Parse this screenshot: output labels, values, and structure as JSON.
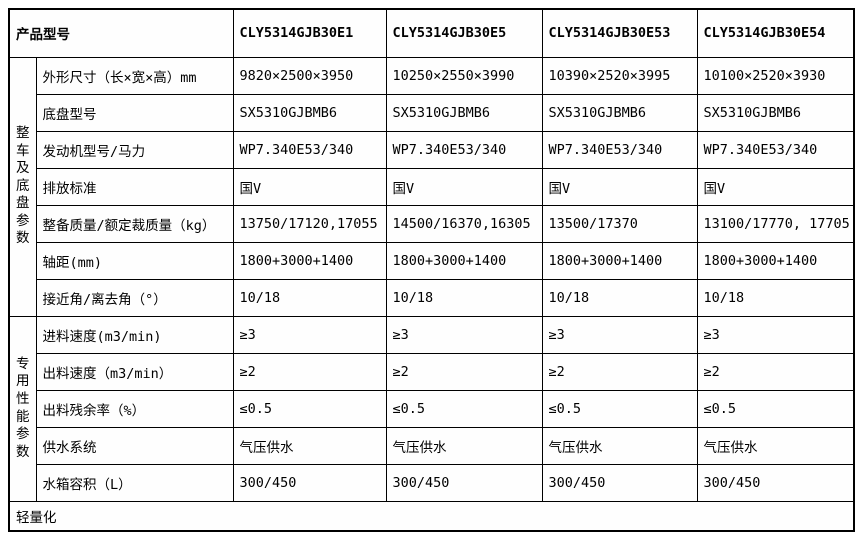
{
  "table": {
    "header": {
      "product_label": "产品型号",
      "models": [
        "CLY5314GJB30E1",
        "CLY5314GJB30E5",
        "CLY5314GJB30E53",
        "CLY5314GJB30E54"
      ]
    },
    "groups": [
      {
        "name": "整车及底盘参数",
        "rows": [
          {
            "label": "外形尺寸（长×宽×高）mm",
            "values": [
              "9820×2500×3950",
              "10250×2550×3990",
              "10390×2520×3995",
              "10100×2520×3930"
            ]
          },
          {
            "label": "底盘型号",
            "values": [
              "SX5310GJBMB6",
              "SX5310GJBMB6",
              "SX5310GJBMB6",
              "SX5310GJBMB6"
            ]
          },
          {
            "label": "发动机型号/马力",
            "values": [
              "WP7.340E53/340",
              "WP7.340E53/340",
              "WP7.340E53/340",
              "WP7.340E53/340"
            ]
          },
          {
            "label": "排放标准",
            "values": [
              "国V",
              "国V",
              "国V",
              "国V"
            ]
          },
          {
            "label": "整备质量/额定裁质量（kg）",
            "values": [
              "13750/17120,17055",
              "14500/16370,16305",
              "13500/17370",
              "13100/17770, 17705"
            ]
          },
          {
            "label": "轴距(mm)",
            "values": [
              "1800+3000+1400",
              "1800+3000+1400",
              "1800+3000+1400",
              "1800+3000+1400"
            ]
          },
          {
            "label": "接近角/离去角（°）",
            "values": [
              "10/18",
              "10/18",
              "10/18",
              "10/18"
            ]
          }
        ]
      },
      {
        "name": "专用性能参数",
        "rows": [
          {
            "label": "进料速度(m3/min)",
            "values": [
              "≥3",
              "≥3",
              "≥3",
              "≥3"
            ]
          },
          {
            "label": "出料速度（m3/min）",
            "values": [
              "≥2",
              "≥2",
              "≥2",
              "≥2"
            ]
          },
          {
            "label": "出料残余率（%）",
            "values": [
              "≤0.5",
              "≤0.5",
              "≤0.5",
              "≤0.5"
            ]
          },
          {
            "label": "供水系统",
            "values": [
              "气压供水",
              "气压供水",
              "气压供水",
              "气压供水"
            ]
          },
          {
            "label": "水箱容积（L）",
            "values": [
              "300/450",
              "300/450",
              "300/450",
              "300/450"
            ]
          }
        ]
      }
    ],
    "footer": "轻量化"
  },
  "colors": {
    "header_bg": "#d4d4d4",
    "body_bg": "#fefefe",
    "border": "#000000",
    "text": "#000000"
  }
}
